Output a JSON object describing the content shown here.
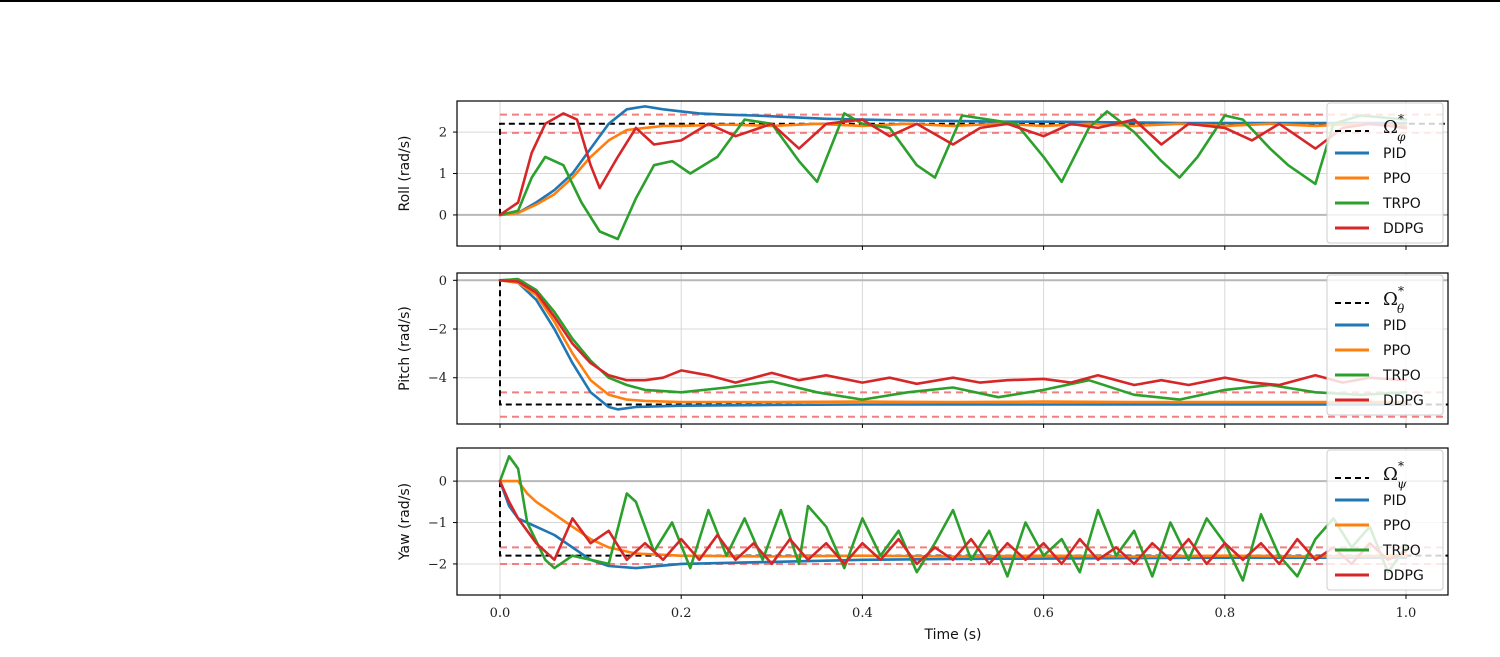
{
  "chart_data": [
    {
      "type": "line",
      "ylabel": "Roll (rad/s)",
      "xlim": [
        0.0,
        1.0
      ],
      "ylim": [
        -0.75,
        2.75
      ],
      "yticks": [
        0,
        1,
        2
      ],
      "grid": true,
      "legend_position": "top-right",
      "reference": {
        "label": "Ω",
        "sub": "φ",
        "sup": "*",
        "value": 2.2,
        "step_at": 0.0,
        "color": "#000000",
        "style": "dashed"
      },
      "tolerance_band": {
        "values": [
          1.98,
          2.42
        ],
        "color": "#f08080",
        "style": "dashed"
      },
      "series": [
        {
          "name": "PID",
          "color": "#1f77b4",
          "x": [
            0,
            0.02,
            0.04,
            0.06,
            0.08,
            0.1,
            0.12,
            0.14,
            0.16,
            0.18,
            0.2,
            0.22,
            0.25,
            0.28,
            0.3,
            0.33,
            0.36,
            0.4,
            0.45,
            0.5,
            0.55,
            0.6,
            0.65,
            0.7,
            0.75,
            0.8,
            0.85,
            0.9,
            0.95,
            1.0
          ],
          "y": [
            0,
            0.05,
            0.3,
            0.6,
            1.0,
            1.6,
            2.2,
            2.55,
            2.62,
            2.55,
            2.5,
            2.45,
            2.42,
            2.4,
            2.38,
            2.35,
            2.32,
            2.3,
            2.28,
            2.27,
            2.25,
            2.25,
            2.24,
            2.23,
            2.22,
            2.22,
            2.22,
            2.22,
            2.22,
            2.22
          ]
        },
        {
          "name": "PPO",
          "color": "#ff7f0e",
          "x": [
            0,
            0.02,
            0.04,
            0.06,
            0.08,
            0.1,
            0.12,
            0.14,
            0.16,
            0.18,
            0.2,
            0.25,
            0.3,
            0.35,
            0.4,
            0.45,
            0.5,
            0.55,
            0.6,
            0.65,
            0.7,
            0.75,
            0.8,
            0.85,
            0.9,
            0.95,
            1.0
          ],
          "y": [
            0,
            0.05,
            0.25,
            0.5,
            0.9,
            1.4,
            1.8,
            2.05,
            2.1,
            2.15,
            2.15,
            2.18,
            2.15,
            2.2,
            2.15,
            2.2,
            2.15,
            2.2,
            2.15,
            2.2,
            2.15,
            2.2,
            2.15,
            2.2,
            2.15,
            2.2,
            2.15
          ]
        },
        {
          "name": "TRPO",
          "color": "#2ca02c",
          "x": [
            0,
            0.02,
            0.035,
            0.05,
            0.07,
            0.09,
            0.11,
            0.13,
            0.15,
            0.17,
            0.19,
            0.21,
            0.24,
            0.27,
            0.3,
            0.33,
            0.35,
            0.38,
            0.4,
            0.43,
            0.46,
            0.48,
            0.51,
            0.54,
            0.57,
            0.6,
            0.62,
            0.65,
            0.67,
            0.7,
            0.73,
            0.75,
            0.77,
            0.8,
            0.82,
            0.85,
            0.87,
            0.9,
            0.92,
            0.95,
            1.0
          ],
          "y": [
            0,
            0.1,
            0.9,
            1.4,
            1.2,
            0.3,
            -0.4,
            -0.58,
            0.4,
            1.2,
            1.3,
            1.0,
            1.4,
            2.3,
            2.2,
            1.3,
            0.8,
            2.45,
            2.2,
            2.1,
            1.2,
            0.9,
            2.4,
            2.3,
            2.2,
            1.4,
            0.8,
            2.1,
            2.5,
            2.0,
            1.3,
            0.9,
            1.4,
            2.4,
            2.3,
            1.6,
            1.2,
            0.75,
            2.2,
            2.4,
            2.3
          ]
        },
        {
          "name": "DDPG",
          "color": "#d62728",
          "x": [
            0,
            0.02,
            0.035,
            0.05,
            0.07,
            0.085,
            0.1,
            0.11,
            0.13,
            0.15,
            0.17,
            0.2,
            0.23,
            0.26,
            0.3,
            0.33,
            0.36,
            0.4,
            0.43,
            0.46,
            0.5,
            0.53,
            0.56,
            0.6,
            0.63,
            0.66,
            0.7,
            0.73,
            0.76,
            0.8,
            0.83,
            0.86,
            0.9,
            0.93,
            0.96,
            1.0
          ],
          "y": [
            0,
            0.3,
            1.5,
            2.2,
            2.45,
            2.3,
            1.2,
            0.65,
            1.4,
            2.1,
            1.7,
            1.8,
            2.2,
            1.9,
            2.2,
            1.6,
            2.2,
            2.3,
            1.9,
            2.2,
            1.7,
            2.1,
            2.2,
            1.9,
            2.2,
            2.1,
            2.3,
            1.7,
            2.2,
            2.1,
            1.8,
            2.2,
            1.6,
            2.1,
            2.2,
            2.1
          ]
        }
      ]
    },
    {
      "type": "line",
      "ylabel": "Pitch (rad/s)",
      "xlim": [
        0.0,
        1.0
      ],
      "ylim": [
        -5.9,
        0.3
      ],
      "yticks": [
        0,
        -2,
        -4
      ],
      "grid": true,
      "legend_position": "top-right",
      "reference": {
        "label": "Ω",
        "sub": "θ",
        "sup": "*",
        "value": -5.1,
        "step_at": 0.0,
        "color": "#000000",
        "style": "dashed"
      },
      "tolerance_band": {
        "values": [
          -4.6,
          -5.6
        ],
        "color": "#f08080",
        "style": "dashed"
      },
      "series": [
        {
          "name": "PID",
          "color": "#1f77b4",
          "x": [
            0,
            0.02,
            0.04,
            0.06,
            0.08,
            0.1,
            0.12,
            0.13,
            0.15,
            0.2,
            0.3,
            0.4,
            0.5,
            0.6,
            0.7,
            0.8,
            0.9,
            1.0
          ],
          "y": [
            0,
            -0.1,
            -0.8,
            -2.0,
            -3.4,
            -4.6,
            -5.2,
            -5.3,
            -5.2,
            -5.15,
            -5.12,
            -5.1,
            -5.1,
            -5.1,
            -5.1,
            -5.1,
            -5.1,
            -5.1
          ]
        },
        {
          "name": "PPO",
          "color": "#ff7f0e",
          "x": [
            0,
            0.02,
            0.04,
            0.06,
            0.08,
            0.1,
            0.12,
            0.14,
            0.16,
            0.2,
            0.3,
            0.4,
            0.5,
            0.6,
            0.7,
            0.8,
            0.9,
            1.0
          ],
          "y": [
            0,
            -0.1,
            -0.6,
            -1.7,
            -3.0,
            -4.1,
            -4.7,
            -4.9,
            -4.95,
            -5.0,
            -5.0,
            -4.98,
            -5.0,
            -4.98,
            -5.0,
            -5.0,
            -5.0,
            -5.0
          ]
        },
        {
          "name": "TRPO",
          "color": "#2ca02c",
          "x": [
            0,
            0.02,
            0.04,
            0.06,
            0.08,
            0.1,
            0.12,
            0.14,
            0.16,
            0.18,
            0.2,
            0.25,
            0.3,
            0.35,
            0.4,
            0.45,
            0.5,
            0.55,
            0.6,
            0.65,
            0.7,
            0.75,
            0.8,
            0.85,
            0.9,
            0.95,
            1.0
          ],
          "y": [
            0,
            0.05,
            -0.4,
            -1.3,
            -2.4,
            -3.3,
            -4.0,
            -4.3,
            -4.5,
            -4.55,
            -4.6,
            -4.4,
            -4.15,
            -4.6,
            -4.9,
            -4.6,
            -4.4,
            -4.8,
            -4.5,
            -4.1,
            -4.7,
            -4.9,
            -4.5,
            -4.3,
            -4.6,
            -4.7,
            -4.6
          ]
        },
        {
          "name": "DDPG",
          "color": "#d62728",
          "x": [
            0,
            0.02,
            0.04,
            0.06,
            0.08,
            0.1,
            0.12,
            0.14,
            0.16,
            0.18,
            0.2,
            0.23,
            0.26,
            0.3,
            0.33,
            0.36,
            0.4,
            0.43,
            0.46,
            0.5,
            0.53,
            0.56,
            0.6,
            0.63,
            0.66,
            0.7,
            0.73,
            0.76,
            0.8,
            0.83,
            0.86,
            0.9,
            0.93,
            0.96,
            1.0
          ],
          "y": [
            0,
            -0.05,
            -0.5,
            -1.5,
            -2.6,
            -3.4,
            -3.9,
            -4.1,
            -4.1,
            -4.0,
            -3.7,
            -3.9,
            -4.2,
            -3.8,
            -4.1,
            -3.9,
            -4.2,
            -4.0,
            -4.25,
            -4.0,
            -4.2,
            -4.1,
            -4.05,
            -4.2,
            -3.9,
            -4.3,
            -4.1,
            -4.3,
            -4.0,
            -4.2,
            -4.3,
            -3.9,
            -4.2,
            -4.0,
            -4.1
          ]
        }
      ]
    },
    {
      "type": "line",
      "ylabel": "Yaw (rad/s)",
      "xlabel": "Time (s)",
      "xlim": [
        0.0,
        1.0
      ],
      "xticks": [
        0.0,
        0.2,
        0.4,
        0.6,
        0.8,
        1.0
      ],
      "xtick_labels": [
        "0.0",
        "0.2",
        "0.4",
        "0.6",
        "0.8",
        "1.0"
      ],
      "ylim": [
        -2.75,
        0.8
      ],
      "yticks": [
        0,
        -1,
        -2
      ],
      "grid": true,
      "legend_position": "top-right",
      "reference": {
        "label": "Ω",
        "sub": "ψ",
        "sup": "*",
        "value": -1.8,
        "step_at": 0.0,
        "color": "#000000",
        "style": "dashed"
      },
      "tolerance_band": {
        "values": [
          -1.6,
          -2.0
        ],
        "color": "#f08080",
        "style": "dashed"
      },
      "series": [
        {
          "name": "PID",
          "color": "#1f77b4",
          "x": [
            0,
            0.01,
            0.02,
            0.04,
            0.06,
            0.08,
            0.1,
            0.12,
            0.15,
            0.2,
            0.3,
            0.4,
            0.5,
            0.6,
            0.7,
            0.8,
            0.9,
            1.0
          ],
          "y": [
            0,
            -0.6,
            -0.9,
            -1.1,
            -1.3,
            -1.6,
            -1.9,
            -2.05,
            -2.1,
            -2.0,
            -1.95,
            -1.9,
            -1.88,
            -1.87,
            -1.86,
            -1.85,
            -1.85,
            -1.85
          ]
        },
        {
          "name": "PPO",
          "color": "#ff7f0e",
          "x": [
            0,
            0.01,
            0.02,
            0.03,
            0.04,
            0.06,
            0.08,
            0.1,
            0.12,
            0.15,
            0.2,
            0.3,
            0.4,
            0.5,
            0.6,
            0.7,
            0.8,
            0.9,
            1.0
          ],
          "y": [
            0,
            0.0,
            0.0,
            -0.3,
            -0.5,
            -0.8,
            -1.1,
            -1.4,
            -1.6,
            -1.75,
            -1.8,
            -1.82,
            -1.8,
            -1.82,
            -1.8,
            -1.82,
            -1.8,
            -1.82,
            -1.8
          ]
        },
        {
          "name": "TRPO",
          "color": "#2ca02c",
          "x": [
            0,
            0.01,
            0.02,
            0.03,
            0.05,
            0.06,
            0.08,
            0.1,
            0.12,
            0.14,
            0.15,
            0.17,
            0.19,
            0.21,
            0.23,
            0.25,
            0.27,
            0.29,
            0.31,
            0.33,
            0.34,
            0.36,
            0.38,
            0.4,
            0.42,
            0.44,
            0.46,
            0.48,
            0.5,
            0.52,
            0.54,
            0.56,
            0.58,
            0.6,
            0.62,
            0.64,
            0.66,
            0.68,
            0.7,
            0.72,
            0.74,
            0.76,
            0.78,
            0.8,
            0.82,
            0.84,
            0.86,
            0.88,
            0.9,
            0.92,
            0.94,
            0.96,
            0.98,
            1.0
          ],
          "y": [
            0,
            0.6,
            0.3,
            -1.0,
            -1.9,
            -2.1,
            -1.8,
            -1.9,
            -2.0,
            -0.3,
            -0.5,
            -1.7,
            -1.0,
            -2.1,
            -0.7,
            -1.8,
            -0.9,
            -1.9,
            -0.7,
            -2.0,
            -0.6,
            -1.1,
            -2.1,
            -0.9,
            -1.8,
            -1.2,
            -2.2,
            -1.5,
            -0.7,
            -1.9,
            -1.2,
            -2.3,
            -1.0,
            -1.8,
            -1.4,
            -2.2,
            -0.7,
            -1.8,
            -1.2,
            -2.3,
            -1.0,
            -1.9,
            -0.9,
            -1.5,
            -2.4,
            -0.8,
            -1.8,
            -2.3,
            -1.4,
            -0.9,
            -1.6,
            -1.1,
            -2.2,
            -1.6
          ]
        },
        {
          "name": "DDPG",
          "color": "#d62728",
          "x": [
            0,
            0.01,
            0.02,
            0.04,
            0.06,
            0.08,
            0.1,
            0.12,
            0.14,
            0.16,
            0.18,
            0.2,
            0.22,
            0.24,
            0.26,
            0.28,
            0.3,
            0.32,
            0.34,
            0.36,
            0.38,
            0.4,
            0.42,
            0.44,
            0.46,
            0.48,
            0.5,
            0.52,
            0.54,
            0.56,
            0.58,
            0.6,
            0.62,
            0.64,
            0.66,
            0.68,
            0.7,
            0.72,
            0.74,
            0.76,
            0.78,
            0.8,
            0.82,
            0.84,
            0.86,
            0.88,
            0.9,
            0.92,
            0.94,
            0.96,
            0.98,
            1.0
          ],
          "y": [
            0,
            -0.5,
            -0.9,
            -1.5,
            -1.9,
            -0.9,
            -1.5,
            -1.2,
            -1.9,
            -1.5,
            -1.9,
            -1.4,
            -1.9,
            -1.3,
            -1.9,
            -1.5,
            -2.0,
            -1.4,
            -1.9,
            -1.5,
            -2.0,
            -1.5,
            -1.9,
            -1.4,
            -2.0,
            -1.6,
            -1.9,
            -1.4,
            -2.0,
            -1.5,
            -1.9,
            -1.5,
            -2.0,
            -1.4,
            -1.9,
            -1.6,
            -2.0,
            -1.5,
            -1.9,
            -1.4,
            -2.0,
            -1.5,
            -1.9,
            -1.5,
            -2.0,
            -1.4,
            -1.9,
            -1.6,
            -2.0,
            -1.5,
            -1.9,
            -1.7
          ]
        }
      ]
    }
  ]
}
